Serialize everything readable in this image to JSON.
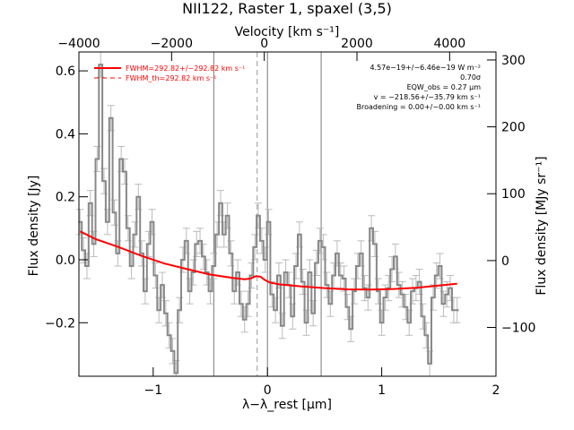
{
  "chart_data": {
    "type": "line",
    "title": "NII122, Raster 1, spaxel (3,5)",
    "xlabel": "λ−λ_rest [μm]",
    "ylabel": "Flux density [Jy]",
    "top_xlabel": "Velocity [km s⁻¹]",
    "right_ylabel": "Flux density [MJy sr⁻¹]",
    "xlim": [
      -1.65,
      2.0
    ],
    "ylim": [
      -0.37,
      0.66
    ],
    "top_xlim": [
      -4000,
      5000
    ],
    "right_ylim": [
      -173,
      312
    ],
    "x_ticks": [
      -1,
      0,
      1,
      2
    ],
    "x_tick_labels": [
      "−1",
      "0",
      "1",
      "2"
    ],
    "y_ticks": [
      -0.2,
      0.0,
      0.2,
      0.4,
      0.6
    ],
    "y_tick_labels": [
      "−0.2",
      "0.0",
      "0.2",
      "0.4",
      "0.6"
    ],
    "top_ticks": [
      -4000,
      -2000,
      0,
      2000,
      4000
    ],
    "top_tick_labels": [
      "−4000",
      "−2000",
      "0",
      "2000",
      "4000"
    ],
    "right_ticks": [
      -100,
      0,
      100,
      200,
      300
    ],
    "right_tick_labels": [
      "−100",
      "0",
      "100",
      "200",
      "300"
    ],
    "vertical_lines": [
      {
        "x": -0.47,
        "style": "solid",
        "color": "#777777"
      },
      {
        "x": 0.0,
        "style": "solid",
        "color": "#777777"
      },
      {
        "x": 0.47,
        "style": "solid",
        "color": "#777777"
      },
      {
        "x": -0.09,
        "style": "dashed",
        "color": "#999999"
      }
    ],
    "series": [
      {
        "kind": "step-data",
        "color": "#888888",
        "x": [
          -1.64,
          -1.61,
          -1.58,
          -1.55,
          -1.52,
          -1.49,
          -1.46,
          -1.43,
          -1.4,
          -1.37,
          -1.34,
          -1.31,
          -1.28,
          -1.25,
          -1.22,
          -1.19,
          -1.16,
          -1.13,
          -1.1,
          -1.07,
          -1.04,
          -1.01,
          -0.98,
          -0.95,
          -0.92,
          -0.89,
          -0.86,
          -0.83,
          -0.8,
          -0.77,
          -0.74,
          -0.71,
          -0.68,
          -0.65,
          -0.62,
          -0.59,
          -0.56,
          -0.53,
          -0.5,
          -0.47,
          -0.44,
          -0.41,
          -0.38,
          -0.35,
          -0.32,
          -0.29,
          -0.26,
          -0.23,
          -0.2,
          -0.17,
          -0.14,
          -0.11,
          -0.08,
          -0.05,
          -0.02,
          0.01,
          0.04,
          0.07,
          0.1,
          0.13,
          0.16,
          0.19,
          0.22,
          0.25,
          0.28,
          0.31,
          0.34,
          0.37,
          0.4,
          0.43,
          0.46,
          0.49,
          0.52,
          0.55,
          0.58,
          0.61,
          0.64,
          0.67,
          0.7,
          0.73,
          0.76,
          0.79,
          0.82,
          0.85,
          0.88,
          0.91,
          0.94,
          0.97,
          1.0,
          1.03,
          1.06,
          1.09,
          1.12,
          1.15,
          1.18,
          1.21,
          1.24,
          1.27,
          1.3,
          1.33,
          1.36,
          1.39,
          1.42,
          1.45,
          1.48,
          1.51,
          1.54,
          1.57,
          1.6,
          1.63,
          1.66
        ],
        "y": [
          0.12,
          0.03,
          -0.02,
          0.18,
          0.05,
          0.32,
          0.62,
          0.25,
          0.12,
          0.45,
          0.15,
          0.02,
          0.32,
          0.28,
          0.1,
          -0.02,
          0.08,
          0.2,
          0.02,
          -0.1,
          0.05,
          0.12,
          -0.05,
          -0.16,
          -0.08,
          -0.17,
          -0.24,
          -0.29,
          -0.36,
          -0.16,
          0.0,
          0.06,
          -0.1,
          -0.04,
          0.05,
          0.06,
          0.01,
          -0.04,
          -0.1,
          -0.02,
          0.08,
          0.18,
          0.08,
          0.14,
          0.02,
          -0.1,
          -0.04,
          -0.14,
          -0.19,
          -0.14,
          -0.05,
          0.04,
          0.14,
          0.06,
          0.0,
          0.12,
          -0.11,
          -0.16,
          -0.05,
          -0.21,
          -0.04,
          -0.08,
          -0.18,
          -0.02,
          0.08,
          -0.07,
          -0.2,
          -0.04,
          -0.17,
          -0.01,
          0.06,
          0.04,
          -0.08,
          -0.14,
          -0.05,
          0.02,
          -0.05,
          -0.06,
          -0.15,
          -0.22,
          -0.1,
          -0.02,
          0.02,
          -0.09,
          -0.12,
          0.1,
          0.05,
          -0.1,
          -0.2,
          -0.12,
          -0.09,
          -0.03,
          0.01,
          -0.08,
          -0.11,
          -0.15,
          -0.2,
          -0.1,
          -0.09,
          -0.07,
          -0.18,
          -0.24,
          -0.33,
          -0.12,
          -0.05,
          -0.02,
          -0.14,
          -0.11,
          -0.09,
          -0.16,
          -0.16
        ],
        "errors": 0.04
      },
      {
        "kind": "fit",
        "name": "FWHM=292.82+/−292.82 km s⁻¹",
        "color": "#ff0000",
        "x": [
          -1.64,
          -1.5,
          -1.3,
          -1.1,
          -0.9,
          -0.7,
          -0.5,
          -0.3,
          -0.2,
          -0.15,
          -0.1,
          -0.06,
          -0.02,
          0.02,
          0.1,
          0.3,
          0.5,
          0.7,
          0.9,
          1.1,
          1.3,
          1.5,
          1.66
        ],
        "y": [
          0.09,
          0.065,
          0.04,
          0.012,
          -0.012,
          -0.03,
          -0.047,
          -0.058,
          -0.062,
          -0.06,
          -0.052,
          -0.054,
          -0.065,
          -0.072,
          -0.078,
          -0.085,
          -0.09,
          -0.094,
          -0.095,
          -0.093,
          -0.089,
          -0.082,
          -0.076
        ]
      }
    ],
    "legend": [
      {
        "label": "FWHM=292.82+/−292.82 km s⁻¹",
        "style": "solid",
        "color": "#ff0000"
      },
      {
        "label": "FWHM_th=292.82 km s⁻¹",
        "style": "dashed",
        "color": "#ff0000"
      }
    ],
    "legend_position": "top-left",
    "annotations": [
      "4.57e−19+/−6.46e−19 W m⁻²",
      "0.70σ",
      "EQW_obs = 0.27 μm",
      "v = −218.56+/−35.79 km s⁻¹",
      "Broadening = 0.00+/−0.00 km s⁻¹"
    ],
    "annotation_position": "top-right",
    "grid": false
  }
}
